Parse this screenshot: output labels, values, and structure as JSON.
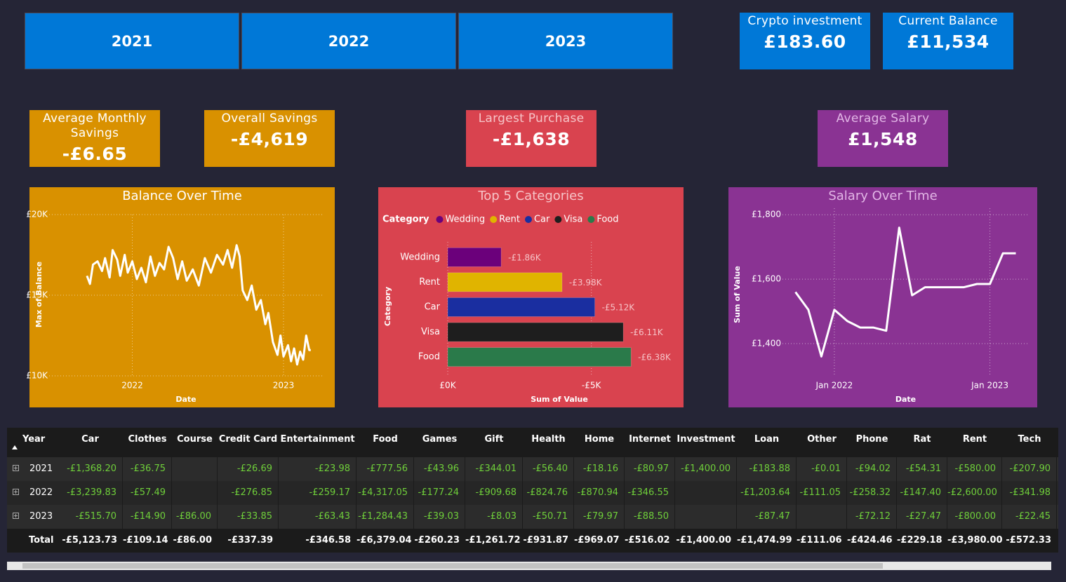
{
  "year_buttons": [
    "2021",
    "2022",
    "2023"
  ],
  "cards": [
    {
      "title": "Crypto investment",
      "value": "£183.60"
    },
    {
      "title": "Current Balance",
      "value": "£11,534"
    },
    {
      "title": "Average Monthly Savings",
      "value": "-£6.65"
    },
    {
      "title": "Overall Savings",
      "value": "-£4,619"
    },
    {
      "title": "Largest Purchase",
      "value": "-£1,638"
    },
    {
      "title": "Average Salary",
      "value": "£1,548"
    }
  ],
  "chart_data": [
    {
      "type": "line",
      "title": "Balance Over Time",
      "x_label": "Date",
      "y_label": "Max of Balance",
      "color": "#ffffff",
      "grid": true,
      "x": [
        2021.7,
        2021.72,
        2021.74,
        2021.77,
        2021.8,
        2021.82,
        2021.85,
        2021.87,
        2021.9,
        2021.92,
        2021.95,
        2021.97,
        2022.0,
        2022.03,
        2022.06,
        2022.09,
        2022.12,
        2022.15,
        2022.18,
        2022.21,
        2022.24,
        2022.27,
        2022.3,
        2022.33,
        2022.36,
        2022.4,
        2022.44,
        2022.48,
        2022.52,
        2022.56,
        2022.6,
        2022.63,
        2022.66,
        2022.69,
        2022.71,
        2022.73,
        2022.76,
        2022.79,
        2022.82,
        2022.85,
        2022.88,
        2022.9,
        2022.93,
        2022.96,
        2022.98,
        2023.0,
        2023.03,
        2023.05,
        2023.07,
        2023.09,
        2023.11,
        2023.13,
        2023.15,
        2023.17,
        2023.18
      ],
      "values": [
        16200,
        15700,
        16900,
        17100,
        16500,
        17300,
        16100,
        17800,
        17200,
        16200,
        17500,
        16400,
        17100,
        16000,
        16700,
        15800,
        17400,
        16200,
        17000,
        16600,
        18000,
        17300,
        16000,
        17100,
        15900,
        16600,
        15600,
        17300,
        16400,
        17500,
        16900,
        17800,
        16700,
        18100,
        17400,
        15300,
        14700,
        15600,
        14100,
        14700,
        13200,
        13900,
        12100,
        11300,
        12500,
        11200,
        11900,
        10900,
        11700,
        10700,
        11500,
        11000,
        12500,
        11600,
        11600
      ],
      "xlim": [
        2021.45,
        2023.26
      ],
      "xticks": [
        2022,
        2023
      ],
      "ylim": [
        10000,
        20000
      ],
      "yticks": [
        {
          "value": 10000,
          "label": "£10K"
        },
        {
          "value": 15000,
          "label": "£15K"
        },
        {
          "value": 20000,
          "label": "£20K"
        }
      ]
    },
    {
      "type": "hbar",
      "title": "Top 5 Categories",
      "legend_title": "Category",
      "x_label": "Sum of Value",
      "y_label": "Category",
      "grid": true,
      "categories": [
        "Wedding",
        "Rent",
        "Car",
        "Visa",
        "Food"
      ],
      "colors": [
        "#6b007b",
        "#e0b400",
        "#1a2ea0",
        "#1e1e1e",
        "#2a7a4a"
      ],
      "values": [
        -1860,
        -3980,
        -5120,
        -6110,
        -6380
      ],
      "value_labels": [
        "-£1.86K",
        "-£3.98K",
        "-£5.12K",
        "-£6.11K",
        "-£6.38K"
      ],
      "xlim": [
        0,
        -7500
      ],
      "xticks": [
        {
          "value": 0,
          "label": "£0K"
        },
        {
          "value": -5000,
          "label": "-£5K"
        }
      ]
    },
    {
      "type": "month_line",
      "title": "Salary Over Time",
      "x_label": "Date",
      "y_label": "Sum of Value",
      "color": "#ffffff",
      "grid": true,
      "x": [
        "2021-10",
        "2021-11",
        "2021-12",
        "2022-01",
        "2022-02",
        "2022-03",
        "2022-04",
        "2022-05",
        "2022-06",
        "2022-07",
        "2022-08",
        "2022-09",
        "2022-10",
        "2022-11",
        "2022-12",
        "2023-01",
        "2023-02",
        "2023-03"
      ],
      "values": [
        1560,
        1505,
        1360,
        1505,
        1470,
        1450,
        1450,
        1440,
        1760,
        1550,
        1575,
        1575,
        1575,
        1575,
        1585,
        1585,
        1680,
        1680
      ],
      "xlim": [
        "2021-09",
        "2023-04"
      ],
      "xticks": [
        {
          "value": "2022-01",
          "label": "Jan 2022"
        },
        {
          "value": "2023-01",
          "label": "Jan 2023"
        }
      ],
      "ylim": [
        1300,
        1820
      ],
      "yticks": [
        {
          "value": 1400,
          "label": "£1,400"
        },
        {
          "value": 1600,
          "label": "£1,600"
        },
        {
          "value": 1800,
          "label": "£1,800"
        }
      ]
    }
  ],
  "table": {
    "columns": [
      "Year",
      "Car",
      "Clothes",
      "Course",
      "Credit Card",
      "Entertainment",
      "Food",
      "Games",
      "Gift",
      "Health",
      "Home",
      "Internet",
      "Investment",
      "Loan",
      "Other",
      "Phone",
      "Rat",
      "Rent",
      "Tech"
    ],
    "rows": [
      [
        "2021",
        "-£1,368.20",
        "-£36.75",
        null,
        "-£26.69",
        "-£23.98",
        "-£777.56",
        "-£43.96",
        "-£344.01",
        "-£56.40",
        "-£18.16",
        "-£80.97",
        "-£1,400.00",
        "-£183.88",
        "-£0.01",
        "-£94.02",
        "-£54.31",
        "-£580.00",
        "-£207.90"
      ],
      [
        "2022",
        "-£3,239.83",
        "-£57.49",
        null,
        "-£276.85",
        "-£259.17",
        "-£4,317.05",
        "-£177.24",
        "-£909.68",
        "-£824.76",
        "-£870.94",
        "-£346.55",
        null,
        "-£1,203.64",
        "-£111.05",
        "-£258.32",
        "-£147.40",
        "-£2,600.00",
        "-£341.98"
      ],
      [
        "2023",
        "-£515.70",
        "-£14.90",
        "-£86.00",
        "-£33.85",
        "-£63.43",
        "-£1,284.43",
        "-£39.03",
        "-£8.03",
        "-£50.71",
        "-£79.97",
        "-£88.50",
        null,
        "-£87.47",
        null,
        "-£72.12",
        "-£27.47",
        "-£800.00",
        "-£22.45"
      ]
    ],
    "total": [
      "Total",
      "-£5,123.73",
      "-£109.14",
      "-£86.00",
      "-£337.39",
      "-£346.58",
      "-£6,379.04",
      "-£260.23",
      "-£1,261.72",
      "-£931.87",
      "-£969.07",
      "-£516.02",
      "-£1,400.00",
      "-£1,474.99",
      "-£111.06",
      "-£424.46",
      "-£229.18",
      "-£3,980.00",
      "-£572.33"
    ]
  }
}
